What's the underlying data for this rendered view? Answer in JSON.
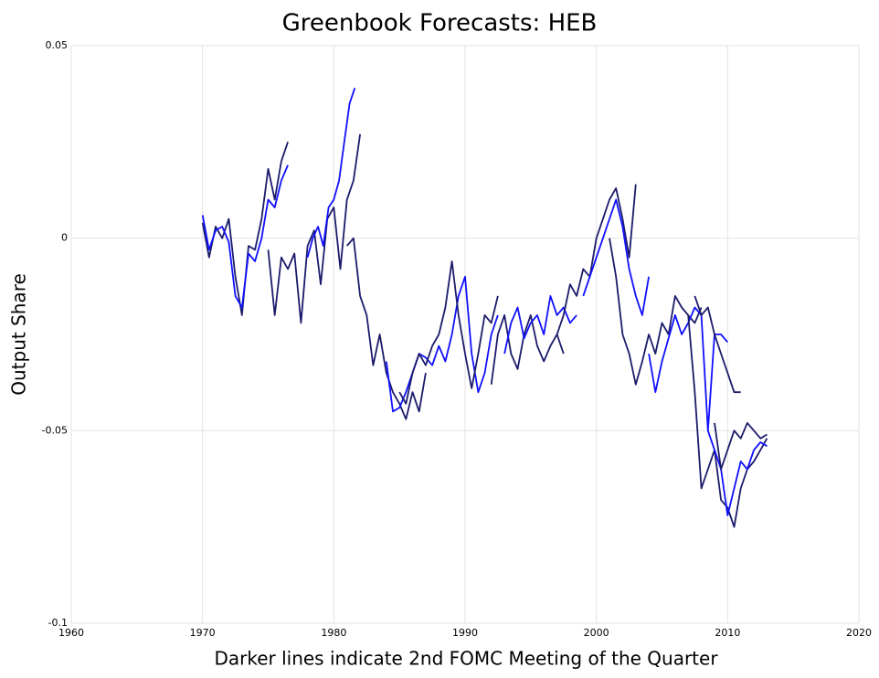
{
  "chart_data": {
    "type": "line",
    "title": "Greenbook Forecasts: HEB",
    "x_label": "Darker lines indicate 2nd FOMC Meeting of the Quarter",
    "y_label": "Output Share",
    "xlim": [
      1960,
      2020
    ],
    "xticks": [
      1960,
      1970,
      1980,
      1990,
      2000,
      2010,
      2020
    ],
    "ylim": [
      -0.1,
      0.05
    ],
    "yticks": [
      0.05,
      0,
      -0.05,
      -0.1
    ],
    "grid": true,
    "series": [
      {
        "color": "#1b1b6b",
        "x": [
          1970,
          1970.5,
          1971,
          1971.5,
          1972,
          1972.5,
          1973,
          1973.5,
          1974,
          1974.5,
          1975,
          1975.5,
          1976,
          1976.5
        ],
        "values": [
          0.004,
          -0.005,
          0.003,
          0.0,
          0.005,
          -0.01,
          -0.02,
          -0.002,
          -0.003,
          0.005,
          0.018,
          0.01,
          0.02,
          0.025
        ]
      },
      {
        "color": "#1010ff",
        "x": [
          1970,
          1970.5,
          1971,
          1971.5,
          1972,
          1972.5,
          1973,
          1973.5,
          1974,
          1974.5,
          1975,
          1975.5,
          1976,
          1976.5
        ],
        "values": [
          0.006,
          -0.003,
          0.002,
          0.003,
          -0.001,
          -0.015,
          -0.018,
          -0.004,
          -0.006,
          0.0,
          0.01,
          0.008,
          0.015,
          0.019
        ]
      },
      {
        "color": "#1b1b6b",
        "x": [
          1975,
          1975.5,
          1976,
          1976.5,
          1977,
          1977.5,
          1978,
          1978.5,
          1979,
          1979.5,
          1980,
          1980.5,
          1981,
          1981.5,
          1982
        ],
        "values": [
          -0.003,
          -0.02,
          -0.005,
          -0.008,
          -0.004,
          -0.022,
          -0.002,
          0.002,
          -0.012,
          0.005,
          0.008,
          -0.008,
          0.01,
          0.015,
          0.027
        ]
      },
      {
        "color": "#1010ff",
        "x": [
          1978,
          1978.4,
          1978.8,
          1979.2,
          1979.6,
          1980,
          1980.4,
          1980.8,
          1981.2,
          1981.6
        ],
        "values": [
          -0.005,
          0.0,
          0.003,
          -0.002,
          0.008,
          0.01,
          0.015,
          0.025,
          0.035,
          0.039
        ]
      },
      {
        "color": "#1b1b6b",
        "x": [
          1981,
          1981.5,
          1982,
          1982.5,
          1983,
          1983.5,
          1984,
          1984.5,
          1985,
          1985.5,
          1986,
          1986.5,
          1987
        ],
        "values": [
          -0.002,
          0.0,
          -0.015,
          -0.02,
          -0.033,
          -0.025,
          -0.035,
          -0.04,
          -0.043,
          -0.047,
          -0.04,
          -0.045,
          -0.035
        ]
      },
      {
        "color": "#1010ff",
        "x": [
          1984,
          1984.5,
          1985,
          1985.5,
          1986,
          1986.5,
          1987,
          1987.5,
          1988,
          1988.5,
          1989,
          1989.5,
          1990,
          1990.5,
          1991,
          1991.5,
          1992,
          1992.5
        ],
        "values": [
          -0.032,
          -0.045,
          -0.044,
          -0.04,
          -0.035,
          -0.03,
          -0.031,
          -0.033,
          -0.028,
          -0.032,
          -0.025,
          -0.015,
          -0.01,
          -0.03,
          -0.04,
          -0.035,
          -0.025,
          -0.02
        ]
      },
      {
        "color": "#1b1b6b",
        "x": [
          1985,
          1985.5,
          1986,
          1986.5,
          1987,
          1987.5,
          1988,
          1988.5,
          1989,
          1989.5,
          1990,
          1990.5,
          1991,
          1991.5,
          1992,
          1992.5
        ],
        "values": [
          -0.04,
          -0.043,
          -0.035,
          -0.03,
          -0.033,
          -0.028,
          -0.025,
          -0.018,
          -0.006,
          -0.02,
          -0.03,
          -0.039,
          -0.03,
          -0.02,
          -0.022,
          -0.015
        ]
      },
      {
        "color": "#1b1b6b",
        "x": [
          1992,
          1992.5,
          1993,
          1993.5,
          1994,
          1994.5,
          1995,
          1995.5,
          1996,
          1996.5,
          1997,
          1997.5
        ],
        "values": [
          -0.038,
          -0.025,
          -0.02,
          -0.03,
          -0.034,
          -0.025,
          -0.02,
          -0.028,
          -0.032,
          -0.028,
          -0.025,
          -0.03
        ]
      },
      {
        "color": "#1010ff",
        "x": [
          1993,
          1993.5,
          1994,
          1994.5,
          1995,
          1995.5,
          1996,
          1996.5,
          1997,
          1997.5,
          1998,
          1998.5
        ],
        "values": [
          -0.03,
          -0.022,
          -0.018,
          -0.026,
          -0.022,
          -0.02,
          -0.025,
          -0.015,
          -0.02,
          -0.018,
          -0.022,
          -0.02
        ]
      },
      {
        "color": "#1b1b6b",
        "x": [
          1997,
          1997.5,
          1998,
          1998.5,
          1999,
          1999.5,
          2000,
          2000.5,
          2001,
          2001.5,
          2002,
          2002.5,
          2003
        ],
        "values": [
          -0.025,
          -0.02,
          -0.012,
          -0.015,
          -0.008,
          -0.01,
          0.0,
          0.005,
          0.01,
          0.013,
          0.005,
          -0.005,
          0.014
        ]
      },
      {
        "color": "#1010ff",
        "x": [
          1999,
          1999.5,
          2000,
          2000.5,
          2001,
          2001.5,
          2002,
          2002.5,
          2003,
          2003.5,
          2004
        ],
        "values": [
          -0.015,
          -0.01,
          -0.005,
          0.0,
          0.005,
          0.01,
          0.003,
          -0.008,
          -0.015,
          -0.02,
          -0.01
        ]
      },
      {
        "color": "#1b1b6b",
        "x": [
          2001,
          2001.5,
          2002,
          2002.5,
          2003,
          2003.5,
          2004,
          2004.5,
          2005,
          2005.5,
          2006,
          2006.5,
          2007,
          2007.5,
          2008
        ],
        "values": [
          0.0,
          -0.01,
          -0.025,
          -0.03,
          -0.038,
          -0.032,
          -0.025,
          -0.03,
          -0.022,
          -0.025,
          -0.015,
          -0.018,
          -0.02,
          -0.022,
          -0.018
        ]
      },
      {
        "color": "#1010ff",
        "x": [
          2004,
          2004.5,
          2005,
          2005.5,
          2006,
          2006.5,
          2007,
          2007.5,
          2008,
          2008.5,
          2009,
          2009.5,
          2010
        ],
        "values": [
          -0.03,
          -0.04,
          -0.032,
          -0.026,
          -0.02,
          -0.025,
          -0.022,
          -0.018,
          -0.02,
          -0.05,
          -0.025,
          -0.025,
          -0.027
        ]
      },
      {
        "color": "#1b1b6b",
        "x": [
          2007.5,
          2008,
          2008.5,
          2009,
          2009.5,
          2010,
          2010.5,
          2011
        ],
        "values": [
          -0.015,
          -0.02,
          -0.018,
          -0.025,
          -0.03,
          -0.035,
          -0.04,
          -0.04
        ]
      },
      {
        "color": "#1b1b6b",
        "x": [
          2007,
          2007.5,
          2008,
          2008.5,
          2009,
          2009.5,
          2010,
          2010.5,
          2011,
          2011.5,
          2012,
          2012.5,
          2013
        ],
        "values": [
          -0.02,
          -0.04,
          -0.065,
          -0.06,
          -0.055,
          -0.068,
          -0.07,
          -0.075,
          -0.065,
          -0.06,
          -0.058,
          -0.055,
          -0.052
        ]
      },
      {
        "color": "#1010ff",
        "x": [
          2008.5,
          2009,
          2009.5,
          2010,
          2010.5,
          2011,
          2011.5,
          2012,
          2012.5,
          2013
        ],
        "values": [
          -0.05,
          -0.055,
          -0.06,
          -0.072,
          -0.065,
          -0.058,
          -0.06,
          -0.055,
          -0.053,
          -0.054
        ]
      },
      {
        "color": "#1b1b6b",
        "x": [
          2009,
          2009.5,
          2010,
          2010.5,
          2011,
          2011.5,
          2012,
          2012.5,
          2013
        ],
        "values": [
          -0.048,
          -0.06,
          -0.055,
          -0.05,
          -0.052,
          -0.048,
          -0.05,
          -0.052,
          -0.051
        ]
      }
    ]
  }
}
